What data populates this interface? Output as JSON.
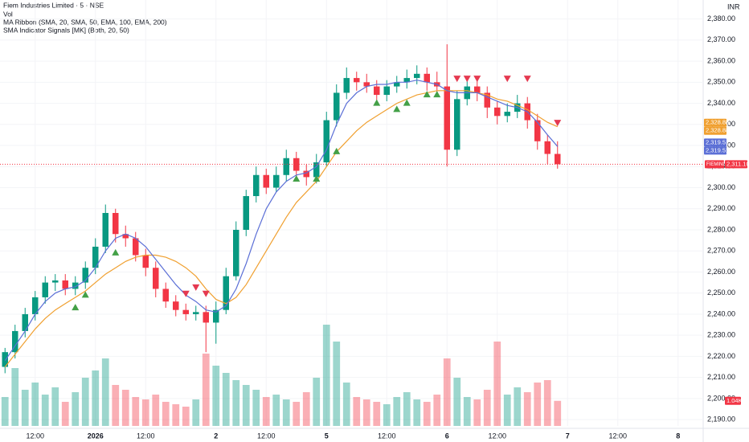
{
  "chart_data": {
    "type": "candlestick",
    "title": "Fiem Industries Limited · 5 · NSE",
    "indicators": [
      "Vol",
      "MA Ribbon (SMA, 20, SMA, 50, EMA, 100, EMA, 200)",
      "SMA Indicator Signals [MK] (Both, 20, 50)"
    ],
    "currency": "INR",
    "symbol_tag": "FIEMIND",
    "close_label": "2,311.10",
    "volume_label": "1.04K",
    "up_color": "#089981",
    "down_color": "#f23645",
    "categories": [
      null,
      null,
      null,
      "12:00",
      null,
      null,
      null,
      null,
      null,
      "2026",
      null,
      null,
      null,
      null,
      "12:00",
      null,
      null,
      null,
      null,
      null,
      null,
      "2",
      null,
      null,
      null,
      null,
      "12:00",
      null,
      null,
      null,
      null,
      null,
      "5",
      null,
      null,
      null,
      null,
      null,
      "12:00",
      null,
      null,
      null,
      null,
      null,
      "6",
      null,
      null,
      null,
      null,
      "12:00",
      null,
      null,
      null,
      null,
      null,
      null,
      "7",
      null,
      null,
      null,
      null,
      "12:00",
      null,
      null,
      null,
      null,
      null,
      "8",
      null,
      null
    ],
    "open": [
      2215,
      2222,
      2232,
      2240,
      2248,
      2255,
      2256,
      2252,
      2255,
      2262,
      2272,
      2288,
      2278,
      2276,
      2268,
      2262,
      2252,
      2246,
      2242,
      2240,
      2241,
      2236,
      2242,
      2258,
      2280,
      2296,
      2306,
      2300,
      2306,
      2314,
      2308,
      2305,
      2312,
      2332,
      2345,
      2352,
      2350,
      2348,
      2344,
      2348,
      2350,
      2352,
      2354,
      2350,
      2348,
      2318,
      2342,
      2348,
      2345,
      2338,
      2334,
      2336,
      2340,
      2332,
      2322,
      2316,
      null,
      null,
      null,
      null,
      null,
      null,
      null,
      null,
      null,
      null,
      null,
      null,
      null,
      null
    ],
    "high": [
      2224,
      2235,
      2243,
      2251,
      2258,
      2259,
      2259,
      2258,
      2265,
      2276,
      2292,
      2290,
      2282,
      2279,
      2271,
      2265,
      2255,
      2249,
      2245,
      2244,
      2244,
      2246,
      2262,
      2284,
      2299,
      2310,
      2309,
      2310,
      2318,
      2317,
      2311,
      2316,
      2336,
      2349,
      2357,
      2355,
      2354,
      2351,
      2351,
      2353,
      2356,
      2358,
      2357,
      2355,
      2368,
      2346,
      2352,
      2351,
      2348,
      2341,
      2340,
      2344,
      2343,
      2335,
      2325,
      2322,
      null,
      null,
      null,
      null,
      null,
      null,
      null,
      null,
      null,
      null,
      null,
      null,
      null,
      null
    ],
    "low": [
      2212,
      2219,
      2229,
      2237,
      2245,
      2251,
      2249,
      2249,
      2252,
      2259,
      2269,
      2274,
      2272,
      2265,
      2258,
      2248,
      2243,
      2239,
      2237,
      2237,
      2222,
      2226,
      2240,
      2256,
      2277,
      2293,
      2297,
      2298,
      2303,
      2305,
      2301,
      2302,
      2310,
      2329,
      2342,
      2346,
      2345,
      2340,
      2341,
      2345,
      2347,
      2349,
      2346,
      2345,
      2310,
      2315,
      2339,
      2341,
      2333,
      2330,
      2331,
      2333,
      2328,
      2318,
      2311,
      2309,
      null,
      null,
      null,
      null,
      null,
      null,
      null,
      null,
      null,
      null,
      null,
      null,
      null,
      null
    ],
    "close": [
      2222,
      2232,
      2240,
      2248,
      2255,
      2256,
      2252,
      2255,
      2262,
      2272,
      2288,
      2278,
      2276,
      2268,
      2262,
      2252,
      2246,
      2242,
      2240,
      2241,
      2236,
      2242,
      2258,
      2280,
      2296,
      2306,
      2300,
      2306,
      2314,
      2308,
      2305,
      2312,
      2332,
      2345,
      2352,
      2350,
      2348,
      2344,
      2348,
      2350,
      2352,
      2354,
      2350,
      2348,
      2318,
      2342,
      2348,
      2345,
      2338,
      2334,
      2336,
      2340,
      2332,
      2322,
      2316,
      2311.1,
      null,
      null,
      null,
      null,
      null,
      null,
      null,
      null,
      null,
      null,
      null,
      null,
      null,
      null
    ],
    "volume": [
      1200,
      2400,
      1500,
      1800,
      1300,
      1600,
      1000,
      1400,
      2000,
      2300,
      2800,
      1700,
      1500,
      1200,
      1100,
      1300,
      1000,
      900,
      800,
      1100,
      3000,
      2500,
      2200,
      1900,
      1700,
      1500,
      1200,
      1300,
      1100,
      1000,
      1400,
      2000,
      4200,
      3500,
      1800,
      1200,
      1100,
      1000,
      900,
      1200,
      1400,
      1100,
      1000,
      1300,
      2800,
      2000,
      1200,
      1100,
      1500,
      3500,
      1300,
      1600,
      1400,
      1800,
      1900,
      1040,
      null,
      null,
      null,
      null,
      null,
      null,
      null,
      null,
      null,
      null,
      null,
      null,
      null,
      null
    ],
    "sma20": {
      "color": "#5b6fd6",
      "last_label": "2,319.51",
      "values": [
        2218,
        2225,
        2232,
        2240,
        2246,
        2250,
        2252,
        2253,
        2256,
        2262,
        2270,
        2276,
        2278,
        2276,
        2272,
        2266,
        2260,
        2254,
        2249,
        2246,
        2242,
        2241,
        2244,
        2252,
        2264,
        2278,
        2290,
        2298,
        2303,
        2306,
        2307,
        2310,
        2318,
        2330,
        2340,
        2345,
        2348,
        2349,
        2349,
        2350,
        2350,
        2351,
        2350,
        2349,
        2346,
        2345,
        2345,
        2345,
        2343,
        2341,
        2339,
        2338,
        2336,
        2331,
        2325,
        2319.51,
        null,
        null,
        null,
        null,
        null,
        null,
        null,
        null,
        null,
        null,
        null,
        null,
        null,
        null
      ]
    },
    "sma50": {
      "color": "#f0a030",
      "last_label": "2,328.88",
      "values": [
        2215,
        2221,
        2227,
        2233,
        2238,
        2242,
        2245,
        2248,
        2251,
        2255,
        2259,
        2262,
        2265,
        2267,
        2268,
        2268,
        2267,
        2265,
        2262,
        2258,
        2252,
        2247,
        2245,
        2248,
        2254,
        2262,
        2270,
        2278,
        2286,
        2293,
        2298,
        2303,
        2310,
        2317,
        2322,
        2327,
        2331,
        2334,
        2337,
        2340,
        2342,
        2344,
        2345,
        2346,
        2346,
        2346,
        2346,
        2345,
        2344,
        2342,
        2341,
        2339,
        2337,
        2334,
        2331,
        2328.88,
        null,
        null,
        null,
        null,
        null,
        null,
        null,
        null,
        null,
        null,
        null,
        null,
        null,
        null
      ]
    },
    "buy_signals": {
      "color": "#43a047",
      "values": [
        null,
        null,
        null,
        null,
        null,
        null,
        null,
        2243,
        2249,
        null,
        null,
        2269,
        null,
        null,
        null,
        null,
        null,
        null,
        null,
        null,
        null,
        null,
        null,
        null,
        null,
        null,
        null,
        null,
        null,
        2304,
        null,
        2304,
        null,
        2317,
        null,
        null,
        null,
        2340,
        null,
        2337,
        2340,
        null,
        2344,
        2344,
        null,
        null,
        null,
        null,
        null,
        null,
        null,
        null,
        null,
        null,
        null,
        null,
        null,
        null,
        null,
        null,
        null,
        null,
        null,
        null,
        null,
        null,
        null,
        null,
        null,
        null
      ]
    },
    "sell_signals": {
      "color": "#e53950",
      "values": [
        null,
        null,
        null,
        null,
        null,
        null,
        null,
        null,
        null,
        null,
        null,
        null,
        null,
        null,
        null,
        null,
        null,
        null,
        2250,
        2253,
        2250,
        null,
        null,
        null,
        null,
        null,
        null,
        null,
        null,
        null,
        null,
        null,
        null,
        null,
        null,
        null,
        null,
        null,
        null,
        null,
        null,
        null,
        null,
        null,
        null,
        2352,
        2352,
        2352,
        null,
        null,
        2352,
        null,
        2352,
        null,
        null,
        2331,
        null,
        null,
        null,
        null,
        null,
        null,
        null,
        null,
        null,
        null,
        null,
        null,
        null,
        null
      ]
    },
    "ylim": [
      2187,
      2389
    ],
    "yticks": [
      {
        "value": 2190,
        "label": "2,190.00"
      },
      {
        "value": 2200,
        "label": "2,200.00"
      },
      {
        "value": 2210,
        "label": "2,210.00"
      },
      {
        "value": 2220,
        "label": "2,220.00"
      },
      {
        "value": 2230,
        "label": "2,230.00"
      },
      {
        "value": 2240,
        "label": "2,240.00"
      },
      {
        "value": 2250,
        "label": "2,250.00"
      },
      {
        "value": 2260,
        "label": "2,260.00"
      },
      {
        "value": 2270,
        "label": "2,270.00"
      },
      {
        "value": 2280,
        "label": "2,280.00"
      },
      {
        "value": 2290,
        "label": "2,290.00"
      },
      {
        "value": 2300,
        "label": "2,300.00"
      },
      {
        "value": 2310,
        "label": "2,310.00"
      },
      {
        "value": 2320,
        "label": "2,320.00"
      },
      {
        "value": 2330,
        "label": "2,330.00"
      },
      {
        "value": 2340,
        "label": "2,340.00"
      },
      {
        "value": 2350,
        "label": "2,350.00"
      },
      {
        "value": 2360,
        "label": "2,360.00"
      },
      {
        "value": 2370,
        "label": "2,370.00"
      },
      {
        "value": 2380,
        "label": "2,380.00"
      }
    ]
  }
}
